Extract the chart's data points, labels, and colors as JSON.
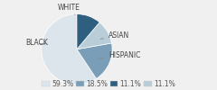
{
  "labels": [
    "WHITE",
    "BLACK",
    "HISPANIC",
    "ASIAN"
  ],
  "values": [
    59.3,
    18.5,
    11.1,
    11.1
  ],
  "colors": [
    "#dce4ec",
    "#7b9eb8",
    "#b8cdd8",
    "#2e5f7e"
  ],
  "legend_labels": [
    "59.3%",
    "18.5%",
    "11.1%",
    "11.1%"
  ],
  "legend_colors": [
    "#dce4ec",
    "#7b9eb8",
    "#2e5f7e",
    "#b8cdd8"
  ],
  "startangle": 90,
  "font_size": 5.5,
  "legend_font_size": 5.5,
  "bg_color": "#f0f0f0"
}
